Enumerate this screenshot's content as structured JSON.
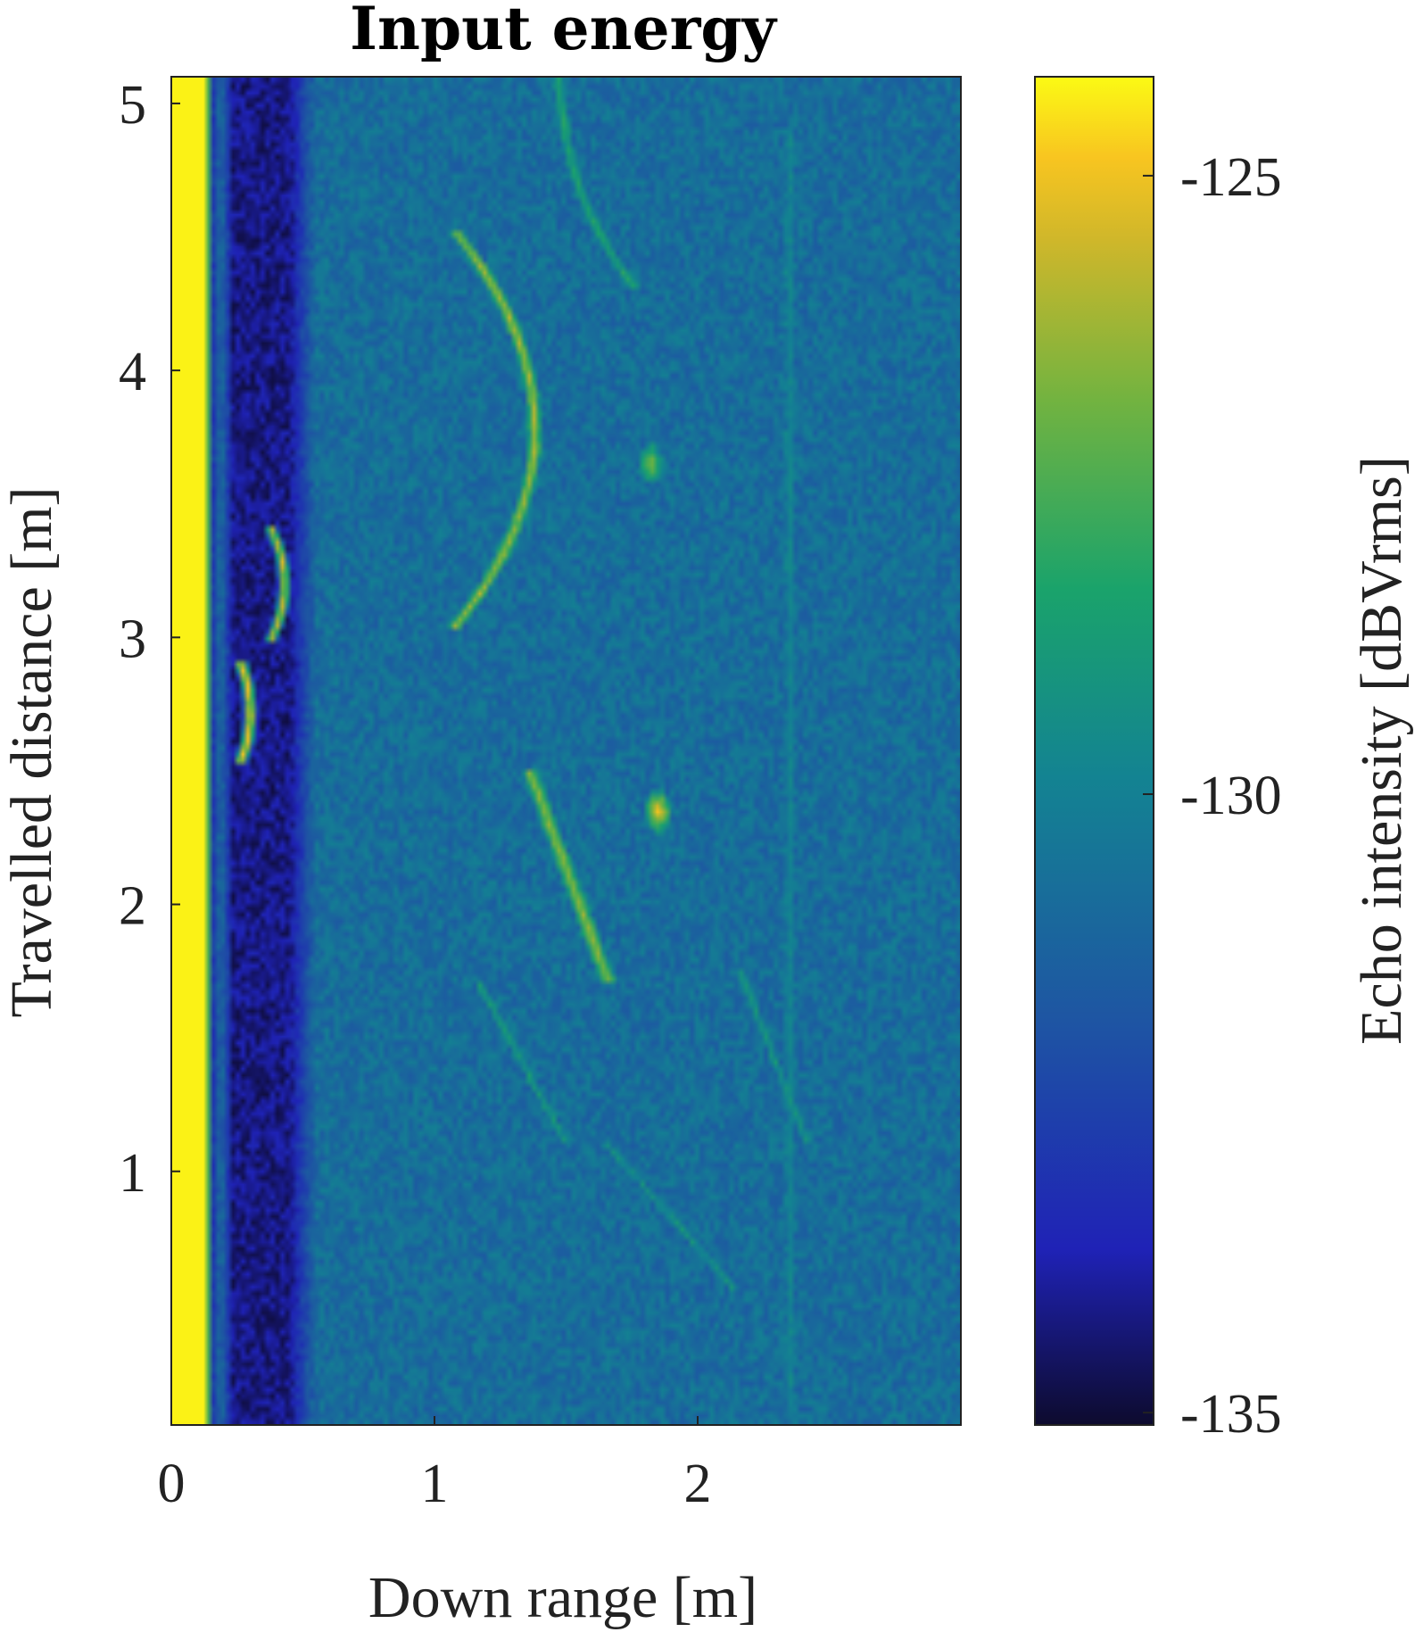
{
  "chart_data": {
    "type": "heatmap",
    "title": "Input energy",
    "xlabel": "Down range [m]",
    "ylabel": "Travelled distance [m]",
    "xlim": [
      0,
      3.0
    ],
    "ylim": [
      0.05,
      5.1
    ],
    "xticks": [
      0,
      1,
      2
    ],
    "xtick_labels": [
      "0",
      "1",
      "2"
    ],
    "yticks": [
      1,
      2,
      3,
      4,
      5
    ],
    "ytick_labels": [
      "1",
      "2",
      "3",
      "4",
      "5"
    ],
    "colorbar": {
      "label": "Echo intensity [dBVrms]",
      "clim": [
        -135.1,
        -124.2
      ],
      "ticks": [
        -125,
        -130,
        -135
      ],
      "tick_labels": [
        "-125",
        "-130",
        "-135"
      ],
      "colormap": "parula"
    },
    "background_level_db": -130.8,
    "near_band_level_db": -134.2,
    "features": [
      {
        "name": "surface-band",
        "range": [
          0.0,
          0.15
        ],
        "distance": [
          0.05,
          5.1
        ],
        "peak_db": -124.3
      },
      {
        "name": "arc-upper-left",
        "range_peak": 0.42,
        "distance_peak": 3.2,
        "peak_db": -125.5
      },
      {
        "name": "arc-lower-left",
        "range_peak": 0.3,
        "distance_peak": 2.75,
        "peak_db": -124.6
      },
      {
        "name": "arc-upper-right",
        "range_peak": 1.38,
        "distance_peak": 3.75,
        "peak_db": -125.8
      },
      {
        "name": "arc-lower-middle",
        "range_peak": 1.65,
        "distance_peak": 2.0,
        "peak_db": -126.0
      },
      {
        "name": "blob-upper",
        "range_peak": 1.82,
        "distance_peak": 3.65,
        "peak_db": -126.5
      },
      {
        "name": "blob-lower",
        "range_peak": 1.85,
        "distance_peak": 2.35,
        "peak_db": -124.8
      }
    ]
  }
}
